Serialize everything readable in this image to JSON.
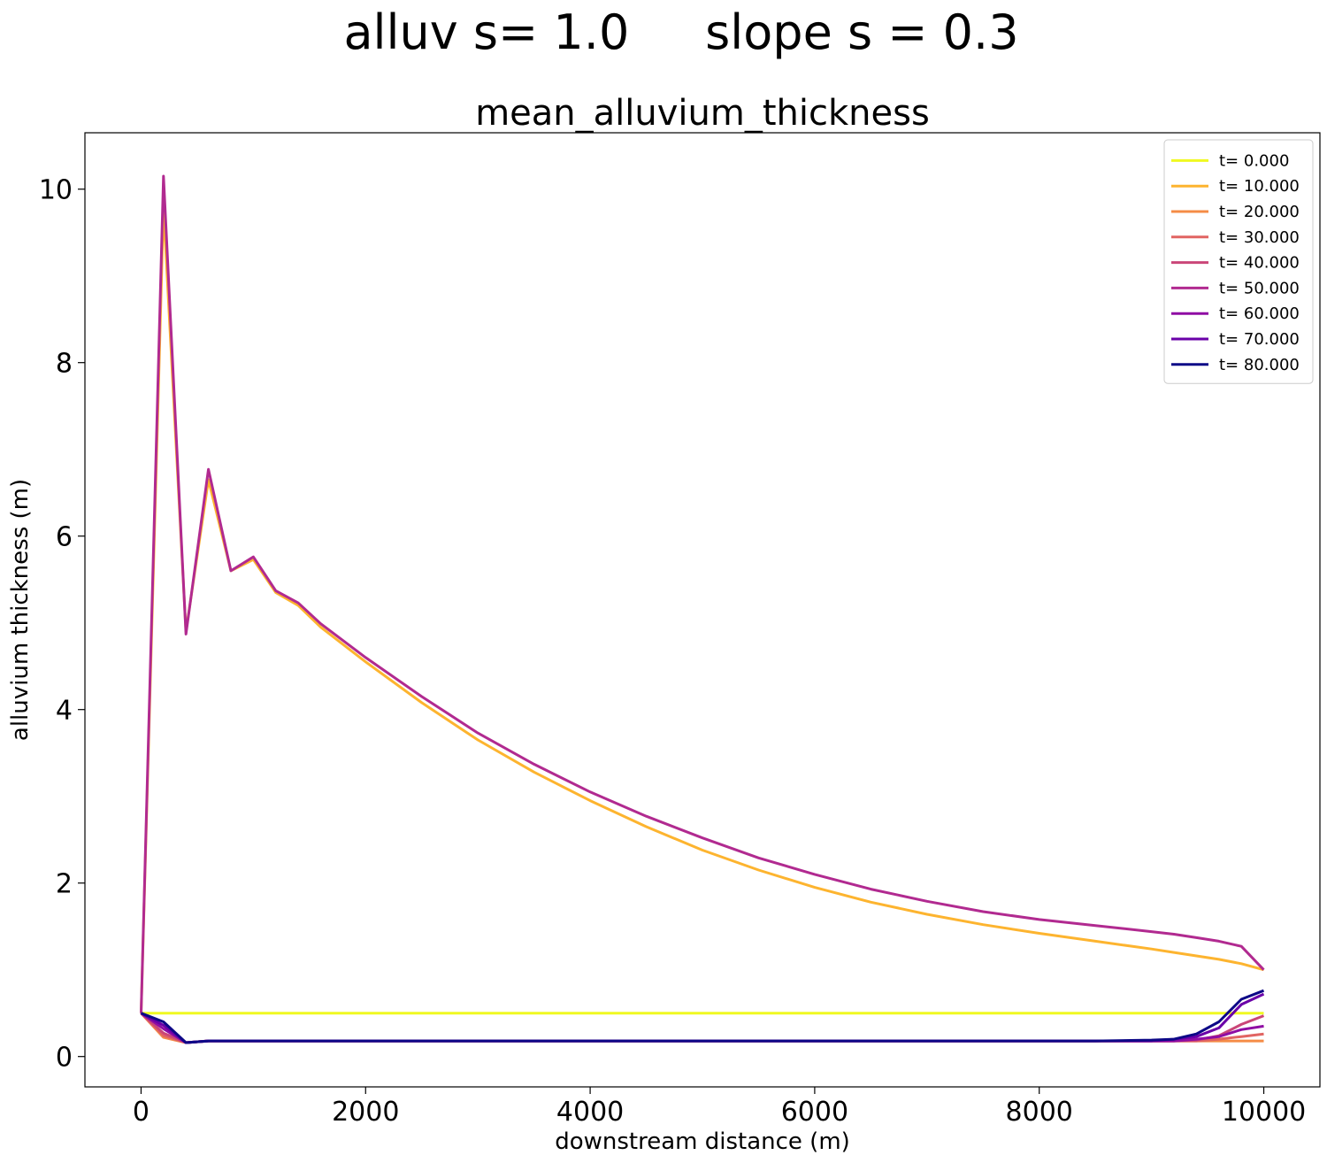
{
  "figure": {
    "suptitle": "alluv s= 1.0     slope s = 0.3"
  },
  "chart_data": {
    "type": "line",
    "title": "mean_alluvium_thickness",
    "xlabel": "downstream distance (m)",
    "ylabel": "alluvium thickness (m)",
    "xlim": [
      -500,
      10500
    ],
    "ylim": [
      -0.35,
      10.65
    ],
    "xticks": [
      0,
      2000,
      4000,
      6000,
      8000,
      10000
    ],
    "yticks": [
      0,
      2,
      4,
      6,
      8,
      10
    ],
    "xtick_labels": [
      "0",
      "2000",
      "4000",
      "6000",
      "8000",
      "10000"
    ],
    "ytick_labels": [
      "0",
      "2",
      "4",
      "6",
      "8",
      "10"
    ],
    "legend_position": "upper-right",
    "x": [
      0,
      200,
      400,
      600,
      800,
      1000,
      1200,
      1400,
      1600,
      2000,
      2500,
      3000,
      3500,
      4000,
      4500,
      5000,
      5500,
      6000,
      6500,
      7000,
      7500,
      8000,
      8500,
      9000,
      9200,
      9400,
      9600,
      9800,
      10000
    ],
    "series": [
      {
        "name": "t= 0.000",
        "color": "#f0f921",
        "values": [
          0.5,
          0.5,
          0.5,
          0.5,
          0.5,
          0.5,
          0.5,
          0.5,
          0.5,
          0.5,
          0.5,
          0.5,
          0.5,
          0.5,
          0.5,
          0.5,
          0.5,
          0.5,
          0.5,
          0.5,
          0.5,
          0.5,
          0.5,
          0.5,
          0.5,
          0.5,
          0.5,
          0.5,
          0.5
        ]
      },
      {
        "name": "t= 10.000",
        "color": "#fdb42f",
        "values": [
          0.5,
          9.8,
          4.9,
          6.65,
          5.6,
          5.73,
          5.35,
          5.2,
          4.95,
          4.55,
          4.08,
          3.65,
          3.28,
          2.95,
          2.65,
          2.38,
          2.15,
          1.95,
          1.78,
          1.64,
          1.52,
          1.42,
          1.33,
          1.24,
          1.2,
          1.16,
          1.12,
          1.07,
          1.0
        ]
      },
      {
        "name": "t= 20.000",
        "color": "#f58c46",
        "values": [
          0.5,
          0.22,
          0.16,
          0.18,
          0.18,
          0.18,
          0.18,
          0.18,
          0.18,
          0.18,
          0.18,
          0.18,
          0.18,
          0.18,
          0.18,
          0.18,
          0.18,
          0.18,
          0.18,
          0.18,
          0.18,
          0.18,
          0.18,
          0.18,
          0.18,
          0.18,
          0.18,
          0.18,
          0.18
        ]
      },
      {
        "name": "t= 30.000",
        "color": "#e16462",
        "values": [
          0.5,
          0.24,
          0.16,
          0.18,
          0.18,
          0.18,
          0.18,
          0.18,
          0.18,
          0.18,
          0.18,
          0.18,
          0.18,
          0.18,
          0.18,
          0.18,
          0.18,
          0.18,
          0.18,
          0.18,
          0.18,
          0.18,
          0.18,
          0.18,
          0.18,
          0.18,
          0.2,
          0.23,
          0.26
        ]
      },
      {
        "name": "t= 40.000",
        "color": "#ca4678",
        "values": [
          0.5,
          0.27,
          0.16,
          0.18,
          0.18,
          0.18,
          0.18,
          0.18,
          0.18,
          0.18,
          0.18,
          0.18,
          0.18,
          0.18,
          0.18,
          0.18,
          0.18,
          0.18,
          0.18,
          0.18,
          0.18,
          0.18,
          0.18,
          0.18,
          0.18,
          0.19,
          0.24,
          0.37,
          0.47
        ]
      },
      {
        "name": "t= 50.000",
        "color": "#b12a90",
        "values": [
          0.5,
          10.15,
          4.87,
          6.77,
          5.6,
          5.76,
          5.37,
          5.23,
          4.99,
          4.6,
          4.15,
          3.73,
          3.37,
          3.05,
          2.77,
          2.52,
          2.29,
          2.1,
          1.93,
          1.79,
          1.67,
          1.58,
          1.51,
          1.44,
          1.41,
          1.37,
          1.33,
          1.27,
          1.0
        ]
      },
      {
        "name": "t= 60.000",
        "color": "#8f0da4",
        "values": [
          0.5,
          0.32,
          0.16,
          0.18,
          0.18,
          0.18,
          0.18,
          0.18,
          0.18,
          0.18,
          0.18,
          0.18,
          0.18,
          0.18,
          0.18,
          0.18,
          0.18,
          0.18,
          0.18,
          0.18,
          0.18,
          0.18,
          0.18,
          0.18,
          0.18,
          0.2,
          0.23,
          0.31,
          0.35
        ]
      },
      {
        "name": "t= 70.000",
        "color": "#6a00a8",
        "values": [
          0.5,
          0.36,
          0.16,
          0.18,
          0.18,
          0.18,
          0.18,
          0.18,
          0.18,
          0.18,
          0.18,
          0.18,
          0.18,
          0.18,
          0.18,
          0.18,
          0.18,
          0.18,
          0.18,
          0.18,
          0.18,
          0.18,
          0.18,
          0.18,
          0.2,
          0.23,
          0.33,
          0.6,
          0.72
        ]
      },
      {
        "name": "t= 80.000",
        "color": "#0d0887",
        "values": [
          0.5,
          0.4,
          0.16,
          0.18,
          0.18,
          0.18,
          0.18,
          0.18,
          0.18,
          0.18,
          0.18,
          0.18,
          0.18,
          0.18,
          0.18,
          0.18,
          0.18,
          0.18,
          0.18,
          0.18,
          0.18,
          0.18,
          0.18,
          0.19,
          0.2,
          0.26,
          0.4,
          0.66,
          0.76
        ]
      }
    ]
  }
}
